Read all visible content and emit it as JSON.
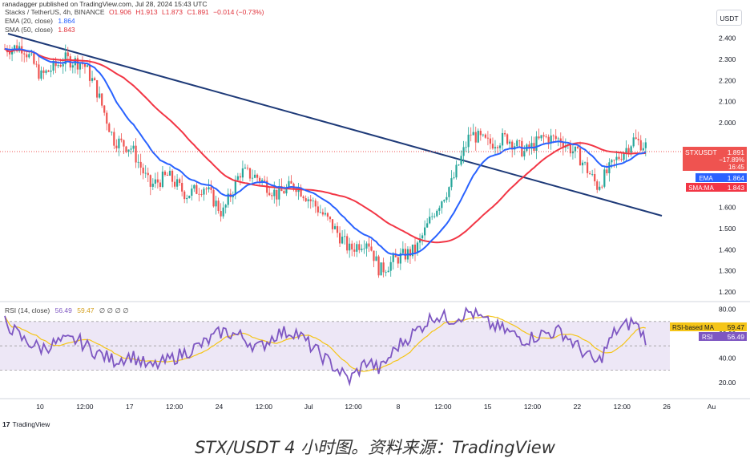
{
  "header": {
    "publish_note": "ranadagger published on TradingView.com, Jul 28, 2024 15:43 UTC",
    "symbol_label": "Stacks / TetherUS, 4h, BINANCE",
    "ohlc": {
      "o": "O1.906",
      "h": "H1.913",
      "l": "L1.873",
      "c": "C1.891",
      "change": "−0.014 (−0.73%)"
    },
    "ema_label": "EMA (20, close)",
    "ema_value": "1.864",
    "sma_label": "SMA (50, close)",
    "sma_value": "1.843",
    "currency_button": "USDT"
  },
  "rsi_legend": {
    "label": "RSI (14, close)",
    "rsi": "56.49",
    "rsi_ma": "59.47",
    "extras": "∅ ∅ ∅ ∅"
  },
  "price_tags": {
    "symbol": "STXUSDT",
    "price": "1.891",
    "change": "−17.89%",
    "countdown": "16:45",
    "ema_tag": "EMA",
    "ema_value": "1.864",
    "sma_tag": "SMA:MA",
    "sma_value": "1.843"
  },
  "rsi_tags": {
    "ma_tag": "RSI-based MA",
    "ma_value": "59.47",
    "rsi_tag": "RSI",
    "rsi_value": "56.49"
  },
  "footer": {
    "logo": "TradingView",
    "caption": "STX/USDT 4 小时图。资料来源：TradingView"
  },
  "colors": {
    "up": "#26a69a",
    "down": "#ef5350",
    "ema": "#2962ff",
    "sma": "#f23645",
    "trendline": "#1e3a78",
    "rsi": "#7e57c2",
    "rsi_ma": "#f5c518",
    "rsi_band": "#ede7f6"
  },
  "chart_data": [
    {
      "type": "candlestick",
      "title": "Stacks / TetherUS, 4h, BINANCE",
      "x_ticks": [
        "10",
        "12:00",
        "17",
        "12:00",
        "24",
        "12:00",
        "Jul",
        "12:00",
        "8",
        "12:00",
        "15",
        "12:00",
        "22",
        "12:00",
        "26",
        "Au"
      ],
      "y_ticks": [
        "2.400",
        "2.300",
        "2.200",
        "2.100",
        "2.000",
        "1.600",
        "1.500",
        "1.400",
        "1.300",
        "1.200"
      ],
      "ylim": [
        1.17,
        2.55
      ],
      "close_points": [
        [
          0,
          2.35
        ],
        [
          1.5,
          2.36
        ],
        [
          3,
          2.22
        ],
        [
          5,
          2.3
        ],
        [
          6.5,
          2.28
        ],
        [
          7.5,
          2.17
        ],
        [
          9,
          1.92
        ],
        [
          10.5,
          1.88
        ],
        [
          12,
          1.7
        ],
        [
          13.5,
          1.75
        ],
        [
          15,
          1.66
        ],
        [
          16.5,
          1.7
        ],
        [
          18,
          1.57
        ],
        [
          19.5,
          1.77
        ],
        [
          21,
          1.74
        ],
        [
          22.5,
          1.66
        ],
        [
          24,
          1.71
        ],
        [
          25.5,
          1.62
        ],
        [
          27,
          1.52
        ],
        [
          28.5,
          1.4
        ],
        [
          30,
          1.45
        ],
        [
          31,
          1.3
        ],
        [
          32.5,
          1.36
        ],
        [
          34,
          1.4
        ],
        [
          35.5,
          1.58
        ],
        [
          37,
          1.72
        ],
        [
          38.5,
          1.95
        ],
        [
          40,
          1.9
        ],
        [
          41.5,
          1.93
        ],
        [
          43,
          1.86
        ],
        [
          44.5,
          1.93
        ],
        [
          46,
          1.92
        ],
        [
          47.5,
          1.84
        ],
        [
          49,
          1.7
        ],
        [
          50.5,
          1.82
        ],
        [
          52,
          1.92
        ],
        [
          53,
          1.891
        ]
      ],
      "ema": {
        "name": "EMA (20, close)",
        "last": 1.864
      },
      "sma": {
        "name": "SMA (50, close)",
        "last": 1.843
      },
      "last_price": 1.891,
      "change": "−0.014 (−0.73%)"
    },
    {
      "type": "line",
      "title": "RSI (14, close)",
      "y_ticks": [
        "80.00",
        "60.00",
        "40.00",
        "20.00"
      ],
      "ylim": [
        10,
        85
      ],
      "bands": [
        30,
        50,
        70
      ],
      "points": [
        [
          0,
          70
        ],
        [
          1.5,
          55
        ],
        [
          3,
          48
        ],
        [
          4.5,
          53
        ],
        [
          6,
          55
        ],
        [
          7.5,
          45
        ],
        [
          9,
          38
        ],
        [
          10.5,
          42
        ],
        [
          12,
          32
        ],
        [
          13.5,
          38
        ],
        [
          15,
          45
        ],
        [
          16.5,
          52
        ],
        [
          18,
          62
        ],
        [
          19.5,
          58
        ],
        [
          21,
          48
        ],
        [
          22.5,
          60
        ],
        [
          24,
          62
        ],
        [
          25.5,
          48
        ],
        [
          27,
          35
        ],
        [
          28.5,
          22
        ],
        [
          30,
          38
        ],
        [
          31,
          30
        ],
        [
          32.5,
          50
        ],
        [
          34,
          62
        ],
        [
          35.5,
          75
        ],
        [
          37,
          72
        ],
        [
          38.5,
          78
        ],
        [
          40,
          68
        ],
        [
          41.5,
          62
        ],
        [
          43,
          55
        ],
        [
          44.5,
          60
        ],
        [
          46,
          62
        ],
        [
          47.5,
          48
        ],
        [
          49,
          35
        ],
        [
          50.5,
          62
        ],
        [
          52,
          70
        ],
        [
          53,
          56.49
        ]
      ],
      "rsi_last": 56.49,
      "rsi_ma_last": 59.47
    }
  ]
}
